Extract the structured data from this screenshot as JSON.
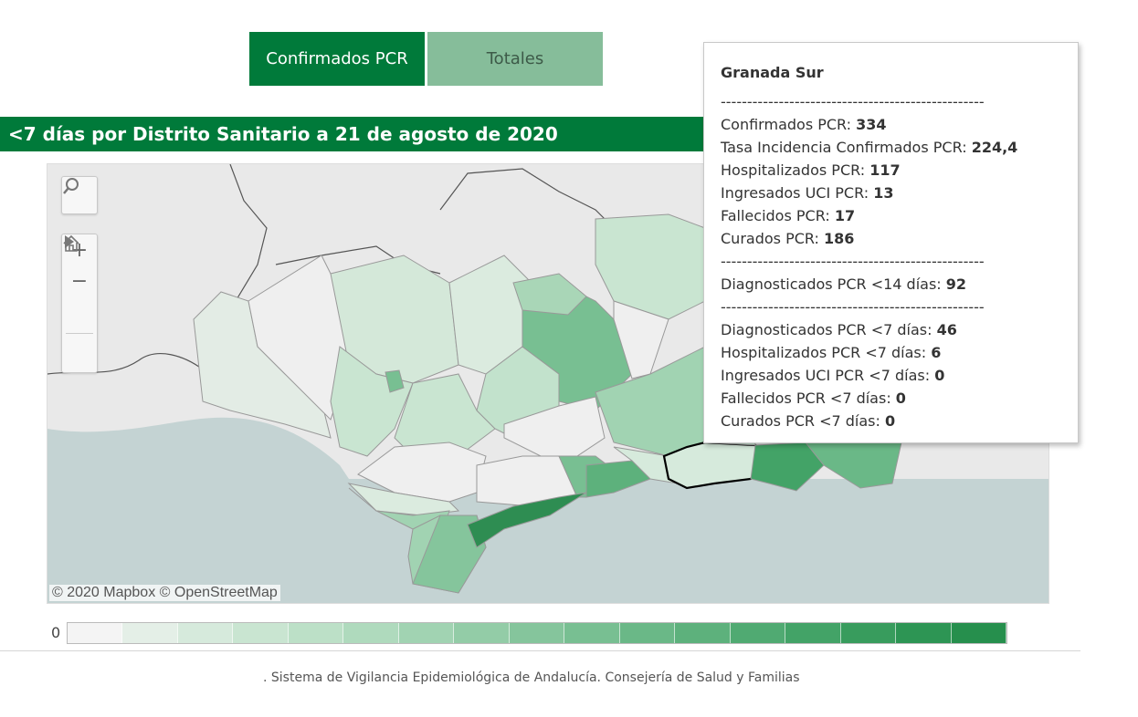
{
  "tabs": [
    {
      "label": "Confirmados PCR",
      "active": true
    },
    {
      "label": "Totales",
      "active": false
    }
  ],
  "title": "<7 días por Distrito Sanitario a 21 de agosto de 2020",
  "map": {
    "attribution": "© 2020 Mapbox © OpenStreetMap",
    "controls": [
      "search-icon",
      "zoom-in-icon",
      "zoom-out-icon",
      "home-icon",
      "play-icon"
    ],
    "colors": {
      "sea": "#c4d3d3",
      "land": "#e9e9e9",
      "region_low": "#eef3ef",
      "region_high": "#2e8d52",
      "highlight_border": "#000000"
    }
  },
  "tooltip": {
    "district": "Granada Sur",
    "separator": "--------------------------------------------------",
    "section1": [
      {
        "label": "Confirmados PCR: ",
        "value": "334"
      },
      {
        "label": "Tasa Incidencia Confirmados PCR: ",
        "value": "224,4"
      },
      {
        "label": "Hospitalizados PCR: ",
        "value": "117"
      },
      {
        "label": "Ingresados UCI PCR: ",
        "value": "13"
      },
      {
        "label": "Fallecidos PCR: ",
        "value": "17"
      },
      {
        "label": "Curados PCR: ",
        "value": "186"
      }
    ],
    "section2": [
      {
        "label": "Diagnosticados PCR <14 días: ",
        "value": "92"
      }
    ],
    "section3": [
      {
        "label": "Diagnosticados PCR <7 días: ",
        "value": "46"
      },
      {
        "label": "Hospitalizados PCR <7 días: ",
        "value": "6"
      },
      {
        "label": "Ingresados UCI PCR <7 días: ",
        "value": "0"
      },
      {
        "label": "Fallecidos PCR <7 días: ",
        "value": "0"
      },
      {
        "label": "Curados PCR <7 días: ",
        "value": "0"
      }
    ]
  },
  "legend": {
    "min_label": "0",
    "colors": [
      "#f4f4f4",
      "#e4efe7",
      "#d6eadc",
      "#c9e5d1",
      "#bce0c7",
      "#afdabd",
      "#a1d3b2",
      "#93cca7",
      "#85c59c",
      "#78bf92",
      "#6ab887",
      "#5db17c",
      "#50aa72",
      "#43a367",
      "#389c5d",
      "#2d9554",
      "#268f4d"
    ]
  },
  "footer": ". Sistema de Vigilancia Epidemiológica de Andalucía. Consejería de Salud y Familias"
}
